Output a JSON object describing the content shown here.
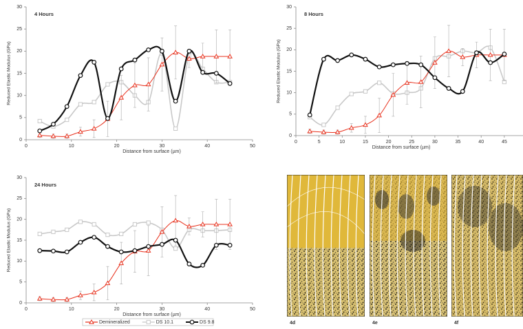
{
  "chart_data": [
    {
      "type": "line",
      "title": "4 Hours",
      "x_label": "Distance from surface  (µm)",
      "y_label": "Reduced Elastic Modulus (GPa)",
      "x": [
        3,
        6,
        9,
        12,
        15,
        18,
        21,
        24,
        27,
        30,
        33,
        36,
        39,
        42,
        45
      ],
      "xlim": [
        0,
        50
      ],
      "xticks": [
        0,
        10,
        20,
        30,
        40,
        50
      ],
      "ylim": [
        0,
        30
      ],
      "yticks": [
        0,
        5,
        10,
        15,
        20,
        25,
        30
      ],
      "series": [
        {
          "name": "Demineralized",
          "color": "#e8321e",
          "marker": "triangle",
          "values": [
            1.0,
            0.8,
            0.8,
            1.8,
            2.5,
            4.7,
            9.5,
            12.3,
            12.5,
            17.0,
            19.7,
            18.3,
            18.8,
            18.8,
            18.8
          ],
          "errors": [
            0.5,
            0.5,
            0.5,
            1,
            2,
            4,
            5,
            5,
            6,
            6,
            6,
            2,
            3,
            6,
            6
          ]
        },
        {
          "name": "DS 10.1",
          "color": "#c8c8c8",
          "marker": "square",
          "values": [
            4.2,
            3.0,
            4.5,
            8.0,
            8.5,
            12.5,
            13.0,
            10.0,
            8.5,
            19.5,
            2.5,
            19.0,
            16.0,
            13.0,
            13.0
          ]
        },
        {
          "name": "DS 9.8",
          "color": "#111111",
          "marker": "circle",
          "values": [
            2.0,
            3.5,
            7.5,
            14.5,
            17.5,
            4.8,
            16.0,
            18.0,
            20.3,
            20.0,
            8.7,
            20.0,
            15.2,
            15.0,
            12.7
          ]
        }
      ]
    },
    {
      "type": "line",
      "title": "8 Hours",
      "x_label": "Distance from surface  (µm)",
      "y_label": "Reduced Elastic Modulus (GPa)",
      "x": [
        3,
        6,
        9,
        12,
        15,
        18,
        21,
        24,
        27,
        30,
        33,
        36,
        39,
        42,
        45
      ],
      "xlim": [
        0,
        50
      ],
      "xticks": [
        0,
        5,
        10,
        15,
        20,
        25,
        30,
        35,
        40,
        45
      ],
      "ylim": [
        0,
        30
      ],
      "yticks": [
        0,
        5,
        10,
        15,
        20,
        25,
        30
      ],
      "series": [
        {
          "name": "Demineralized",
          "color": "#e8321e",
          "marker": "triangle",
          "values": [
            1.0,
            0.8,
            0.8,
            1.8,
            2.5,
            4.7,
            9.5,
            12.3,
            12.5,
            17.0,
            19.7,
            18.3,
            18.8,
            18.8,
            18.8
          ],
          "errors": [
            0.5,
            0.5,
            0.5,
            1,
            2,
            4,
            5,
            5,
            6,
            6,
            6,
            2,
            3,
            6,
            6
          ]
        },
        {
          "name": "DS 10.1",
          "color": "#c8c8c8",
          "marker": "square",
          "values": [
            4.3,
            2.5,
            6.5,
            9.7,
            10.3,
            12.3,
            9.8,
            10.0,
            11.0,
            18.0,
            18.5,
            19.7,
            19.3,
            20.5,
            12.5
          ]
        },
        {
          "name": "DS 9.8",
          "color": "#111111",
          "marker": "circle",
          "values": [
            4.8,
            17.8,
            17.5,
            18.8,
            17.8,
            16.0,
            16.5,
            16.8,
            16.5,
            13.5,
            11.0,
            10.3,
            19.3,
            17.0,
            19.0
          ]
        }
      ]
    },
    {
      "type": "line",
      "title": "24 Hours",
      "x_label": "Distance from surface  (µm)",
      "y_label": "Reduced Elastic Modulus (GPa)",
      "x": [
        3,
        6,
        9,
        12,
        15,
        18,
        21,
        24,
        27,
        30,
        33,
        36,
        39,
        42,
        45
      ],
      "xlim": [
        0,
        50
      ],
      "xticks": [
        0,
        10,
        20,
        30,
        40,
        50
      ],
      "ylim": [
        0,
        30
      ],
      "yticks": [
        0,
        5,
        10,
        15,
        20,
        25,
        30
      ],
      "legend": "bottom",
      "series": [
        {
          "name": "Demineralized",
          "color": "#e8321e",
          "marker": "triangle",
          "values": [
            1.0,
            0.8,
            0.8,
            1.8,
            2.5,
            4.7,
            9.5,
            12.3,
            12.5,
            17.0,
            19.7,
            18.3,
            18.8,
            18.8,
            18.8
          ],
          "errors": [
            0.5,
            0.5,
            0.5,
            1,
            2,
            4,
            5,
            5,
            6,
            6,
            6,
            2,
            3,
            6,
            6
          ]
        },
        {
          "name": "DS 10.1",
          "color": "#c8c8c8",
          "marker": "square",
          "values": [
            16.5,
            17.0,
            17.5,
            19.4,
            18.8,
            16.3,
            16.5,
            18.8,
            19.2,
            17.5,
            13.0,
            17.5,
            17.3,
            17.3,
            17.5
          ]
        },
        {
          "name": "DS 9.8",
          "color": "#111111",
          "marker": "circle",
          "values": [
            12.5,
            12.4,
            12.2,
            14.5,
            15.7,
            13.5,
            12.2,
            12.5,
            13.5,
            14.0,
            15.0,
            9.3,
            9.0,
            13.8,
            13.8
          ]
        }
      ]
    }
  ],
  "panels": [
    {
      "label": "4d"
    },
    {
      "label": "4e"
    },
    {
      "label": "4f"
    }
  ]
}
